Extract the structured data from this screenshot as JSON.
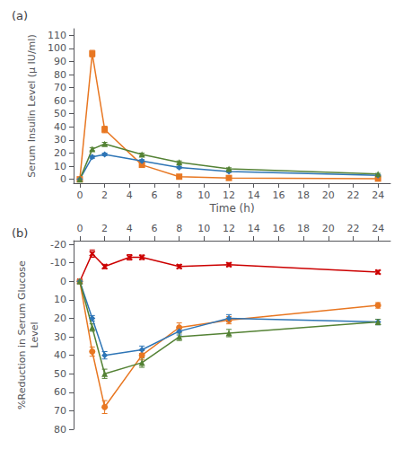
{
  "chart_data": [
    {
      "type": "line",
      "title": "(a)",
      "x_label": "Time (h)",
      "y_label": "Serum Insulin Level (μ IU/ml)",
      "xlim": [
        -0.5,
        25
      ],
      "xticks": [
        0,
        2,
        4,
        6,
        8,
        10,
        12,
        14,
        16,
        18,
        20,
        22,
        24
      ],
      "ylim": [
        -3,
        115
      ],
      "yticks": [
        0,
        10,
        20,
        30,
        40,
        50,
        60,
        70,
        80,
        90,
        100,
        110
      ],
      "grid": false,
      "series": [
        {
          "color": "#E87722",
          "marker": "square",
          "x": [
            0,
            1,
            2,
            5,
            8,
            12,
            24
          ],
          "values": [
            0,
            96,
            38,
            11,
            2,
            1,
            0.5
          ],
          "errors": [
            0.2,
            2.5,
            2.5,
            1.2,
            0.5,
            0.4,
            0.3
          ]
        },
        {
          "color": "#2E75B6",
          "marker": "diamond",
          "x": [
            0,
            1,
            2,
            5,
            8,
            12,
            24
          ],
          "values": [
            0,
            17,
            19,
            14,
            9,
            6,
            3
          ],
          "errors": [
            0.2,
            1.0,
            1.0,
            1.0,
            0.8,
            0.8,
            0.5
          ]
        },
        {
          "color": "#548235",
          "marker": "triangle",
          "x": [
            0,
            1,
            2,
            5,
            8,
            12,
            24
          ],
          "values": [
            0,
            23,
            27,
            19,
            13,
            8,
            4
          ],
          "errors": [
            0.2,
            1.2,
            1.2,
            1.0,
            1.0,
            0.8,
            0.5
          ]
        }
      ]
    },
    {
      "type": "line",
      "title": "(b)",
      "y_label": "%Reduction in Serum Glucose\nLevel",
      "xlim": [
        -0.5,
        25
      ],
      "xticks": [
        0,
        2,
        4,
        6,
        8,
        10,
        12,
        14,
        16,
        18,
        20,
        22,
        24
      ],
      "ylim": [
        80,
        -22
      ],
      "yticks": [
        -20,
        -10,
        0,
        10,
        20,
        30,
        40,
        50,
        60,
        70,
        80
      ],
      "grid": false,
      "series": [
        {
          "color": "#CC0000",
          "marker": "x",
          "x": [
            0,
            1,
            2,
            4,
            5,
            8,
            12,
            24
          ],
          "values": [
            0,
            -15,
            -8,
            -13,
            -13,
            -8,
            -9,
            -5
          ],
          "errors": [
            0.2,
            2.0,
            1.2,
            1.5,
            1.2,
            1.0,
            1.0,
            1.0
          ]
        },
        {
          "color": "#E87722",
          "marker": "circle",
          "x": [
            0,
            1,
            2,
            5,
            8,
            12,
            24
          ],
          "values": [
            0,
            38,
            68,
            40,
            25,
            21,
            13
          ],
          "errors": [
            0.2,
            2.5,
            3.5,
            2.5,
            2.5,
            2.0,
            1.5
          ]
        },
        {
          "color": "#2E75B6",
          "marker": "diamond",
          "x": [
            0,
            1,
            2,
            5,
            8,
            12,
            24
          ],
          "values": [
            0,
            20,
            40,
            37,
            27,
            20,
            22
          ],
          "errors": [
            0.2,
            1.5,
            2.0,
            2.0,
            2.0,
            2.0,
            1.5
          ]
        },
        {
          "color": "#548235",
          "marker": "triangle",
          "x": [
            0,
            1,
            2,
            5,
            8,
            12,
            24
          ],
          "values": [
            0,
            25,
            50,
            44,
            30,
            28,
            22
          ],
          "errors": [
            0.2,
            2.0,
            2.5,
            2.5,
            2.0,
            2.0,
            1.5
          ]
        }
      ]
    }
  ]
}
